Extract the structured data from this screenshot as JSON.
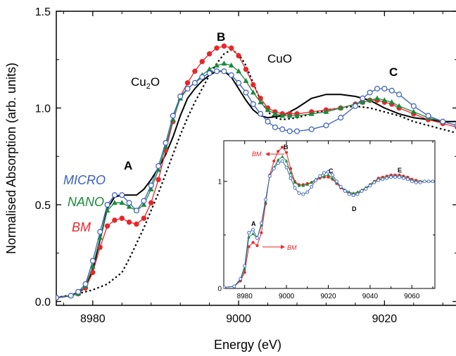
{
  "chart_data": [
    {
      "type": "line",
      "xlabel": "Energy (eV)",
      "ylabel": "Normalised Absorption (arb. units)",
      "xlim": [
        8975,
        9030
      ],
      "ylim": [
        -0.02,
        1.5
      ],
      "x_ticks": [
        8980,
        9000,
        9020
      ],
      "y_ticks": [
        0.0,
        0.5,
        1.0,
        1.5
      ],
      "x_tick_labels": [
        "8980",
        "9000",
        "9020"
      ],
      "y_tick_labels": [
        "0.0",
        "0.5",
        "1.0",
        "1.5"
      ],
      "grid": false,
      "legend_labels": [
        {
          "name": "MICRO",
          "color": "#3a5fbf"
        },
        {
          "name": "NANO",
          "color": "#1a8a3a"
        },
        {
          "name": "BM",
          "color": "#e8262a"
        }
      ],
      "annotations": {
        "A": "A",
        "B": "B",
        "C": "C",
        "cu2o_base": "Cu",
        "cu2o_sub": "2",
        "cu2o_end": "O",
        "cuo": "CuO"
      },
      "series": [
        {
          "name": "MICRO",
          "color": "#3a5fbf",
          "marker": "open-circle",
          "x": [
            8975,
            8977,
            8978,
            8979,
            8980,
            8981,
            8982,
            8983,
            8984,
            8985,
            8986,
            8987,
            8988,
            8989,
            8990,
            8991,
            8992,
            8993,
            8994,
            8995,
            8996,
            8997,
            8998,
            8999,
            9000,
            9001,
            9002,
            9003,
            9004,
            9005,
            9006,
            9007,
            9008,
            9010,
            9012,
            9014,
            9016,
            9017,
            9018,
            9019,
            9020,
            9021,
            9022,
            9024,
            9026,
            9028,
            9030
          ],
          "y": [
            0.02,
            0.03,
            0.05,
            0.09,
            0.21,
            0.36,
            0.5,
            0.55,
            0.55,
            0.51,
            0.47,
            0.52,
            0.6,
            0.7,
            0.82,
            0.96,
            1.06,
            1.1,
            1.13,
            1.16,
            1.18,
            1.19,
            1.19,
            1.17,
            1.13,
            1.08,
            1.02,
            0.97,
            0.93,
            0.9,
            0.89,
            0.88,
            0.88,
            0.89,
            0.91,
            0.95,
            1.01,
            1.05,
            1.08,
            1.1,
            1.1,
            1.09,
            1.07,
            1.01,
            0.96,
            0.93,
            0.91
          ]
        },
        {
          "name": "NANO",
          "color": "#1a8a3a",
          "marker": "filled-triangle",
          "x": [
            8975,
            8977,
            8978,
            8979,
            8980,
            8981,
            8982,
            8983,
            8984,
            8985,
            8986,
            8987,
            8988,
            8989,
            8990,
            8991,
            8992,
            8993,
            8994,
            8995,
            8996,
            8997,
            8998,
            8999,
            9000,
            9001,
            9002,
            9003,
            9004,
            9005,
            9006,
            9007,
            9008,
            9010,
            9012,
            9014,
            9016,
            9017,
            9018,
            9019,
            9020,
            9021,
            9022,
            9024,
            9026,
            9028,
            9030
          ],
          "y": [
            0.02,
            0.03,
            0.04,
            0.08,
            0.18,
            0.33,
            0.47,
            0.51,
            0.51,
            0.49,
            0.47,
            0.5,
            0.58,
            0.68,
            0.8,
            0.94,
            1.05,
            1.1,
            1.13,
            1.17,
            1.2,
            1.22,
            1.23,
            1.22,
            1.19,
            1.14,
            1.08,
            1.03,
            0.99,
            0.97,
            0.96,
            0.96,
            0.96,
            0.97,
            0.98,
            1.0,
            1.02,
            1.03,
            1.04,
            1.05,
            1.04,
            1.03,
            1.01,
            0.98,
            0.95,
            0.93,
            0.91
          ]
        },
        {
          "name": "BM",
          "color": "#e8262a",
          "marker": "filled-circle",
          "x": [
            8975,
            8977,
            8978,
            8979,
            8980,
            8981,
            8982,
            8983,
            8984,
            8985,
            8986,
            8987,
            8988,
            8989,
            8990,
            8991,
            8992,
            8993,
            8994,
            8995,
            8996,
            8997,
            8998,
            8999,
            9000,
            9001,
            9002,
            9003,
            9004,
            9005,
            9006,
            9007,
            9008,
            9010,
            9012,
            9014,
            9016,
            9017,
            9018,
            9019,
            9020,
            9021,
            9022,
            9024,
            9026,
            9028,
            9030
          ],
          "y": [
            0.02,
            0.03,
            0.04,
            0.07,
            0.15,
            0.28,
            0.39,
            0.42,
            0.43,
            0.41,
            0.4,
            0.43,
            0.51,
            0.63,
            0.78,
            0.93,
            1.06,
            1.13,
            1.19,
            1.24,
            1.28,
            1.31,
            1.32,
            1.31,
            1.27,
            1.2,
            1.12,
            1.05,
            1.0,
            0.98,
            0.97,
            0.97,
            0.97,
            0.98,
            0.99,
            1.0,
            1.02,
            1.03,
            1.04,
            1.04,
            1.03,
            1.02,
            1.0,
            0.97,
            0.94,
            0.92,
            0.9
          ]
        },
        {
          "name": "Cu2O",
          "color": "#000000",
          "style": "solid",
          "x": [
            8975,
            8977,
            8979,
            8980,
            8981,
            8982,
            8983,
            8984,
            8985,
            8986,
            8987,
            8988,
            8989,
            8990,
            8991,
            8992,
            8993,
            8994,
            8995,
            8996,
            8997,
            8998,
            8999,
            9000,
            9001,
            9002,
            9003,
            9004,
            9006,
            9008,
            9010,
            9012,
            9014,
            9016,
            9018,
            9020,
            9022,
            9024,
            9026,
            9028,
            9030
          ],
          "y": [
            0.02,
            0.03,
            0.07,
            0.16,
            0.32,
            0.48,
            0.54,
            0.55,
            0.55,
            0.55,
            0.58,
            0.63,
            0.69,
            0.76,
            0.85,
            0.96,
            1.05,
            1.1,
            1.14,
            1.17,
            1.19,
            1.19,
            1.16,
            1.1,
            1.04,
            0.99,
            0.96,
            0.95,
            0.96,
            1.0,
            1.05,
            1.07,
            1.07,
            1.06,
            1.04,
            1.0,
            0.97,
            0.95,
            0.94,
            0.93,
            0.93
          ]
        },
        {
          "name": "CuO",
          "color": "#000000",
          "style": "dotted",
          "x": [
            8975,
            8978,
            8980,
            8982,
            8984,
            8985,
            8986,
            8987,
            8988,
            8989,
            8990,
            8991,
            8992,
            8993,
            8994,
            8995,
            8996,
            8997,
            8998,
            8999,
            9000,
            9001,
            9002,
            9003,
            9004,
            9005,
            9006,
            9008,
            9010,
            9012,
            9014,
            9016,
            9018,
            9020,
            9022,
            9024,
            9026,
            9028,
            9030
          ],
          "y": [
            0.02,
            0.04,
            0.06,
            0.09,
            0.15,
            0.22,
            0.3,
            0.38,
            0.47,
            0.56,
            0.66,
            0.76,
            0.86,
            0.95,
            1.03,
            1.1,
            1.17,
            1.23,
            1.28,
            1.3,
            1.28,
            1.22,
            1.13,
            1.04,
            0.98,
            0.95,
            0.94,
            0.95,
            0.97,
            0.99,
            1.0,
            1.01,
            1.0,
            0.98,
            0.96,
            0.93,
            0.91,
            0.89,
            0.87
          ]
        }
      ]
    },
    {
      "type": "line",
      "inset": true,
      "xlim": [
        8970,
        9071
      ],
      "ylim": [
        0,
        1.38
      ],
      "x_ticks": [
        8980,
        9000,
        9020,
        9040,
        9060
      ],
      "y_ticks": [
        0,
        1
      ],
      "x_tick_labels": [
        "8980",
        "9000",
        "9020",
        "9040",
        "9060"
      ],
      "y_tick_labels": [
        "0",
        "1"
      ],
      "annotations": {
        "A": "A",
        "B": "B",
        "C": "C",
        "D": "D",
        "E": "E",
        "bm_top": "BM",
        "bm_bottom": "BM"
      },
      "series": [
        {
          "name": "MICRO",
          "color": "#3a5fbf",
          "x": [
            8970,
            8975,
            8978,
            8980,
            8982,
            8984,
            8986,
            8988,
            8990,
            8992,
            8994,
            8996,
            8998,
            9000,
            9002,
            9004,
            9006,
            9008,
            9010,
            9012,
            9014,
            9016,
            9018,
            9020,
            9022,
            9024,
            9026,
            9028,
            9030,
            9032,
            9034,
            9036,
            9038,
            9040,
            9042,
            9044,
            9046,
            9048,
            9050,
            9052,
            9054,
            9056,
            9058,
            9060,
            9062,
            9064,
            9066,
            9068,
            9070
          ],
          "y": [
            0.01,
            0.02,
            0.09,
            0.21,
            0.52,
            0.55,
            0.47,
            0.61,
            0.83,
            1.05,
            1.12,
            1.17,
            1.19,
            1.13,
            1.03,
            0.94,
            0.89,
            0.88,
            0.9,
            0.95,
            1.01,
            1.05,
            1.08,
            1.09,
            1.06,
            1.0,
            0.95,
            0.91,
            0.88,
            0.87,
            0.88,
            0.91,
            0.93,
            0.96,
            0.99,
            1.01,
            1.02,
            1.03,
            1.04,
            1.04,
            1.04,
            1.03,
            1.02,
            1.0,
            0.99,
            0.99,
            1.0,
            1.0,
            1.0
          ]
        },
        {
          "name": "NANO",
          "color": "#1a8a3a",
          "x": [
            8970,
            8975,
            8978,
            8980,
            8982,
            8984,
            8986,
            8988,
            8990,
            8992,
            8994,
            8996,
            8998,
            9000,
            9002,
            9004,
            9006,
            9008,
            9010,
            9012,
            9014,
            9016,
            9018,
            9020,
            9022,
            9024,
            9026,
            9028,
            9030,
            9032,
            9034,
            9036,
            9038,
            9040,
            9042,
            9044,
            9046,
            9048,
            9050,
            9052,
            9054,
            9056,
            9058,
            9060,
            9062,
            9064,
            9066,
            9068,
            9070
          ],
          "y": [
            0.01,
            0.02,
            0.08,
            0.18,
            0.48,
            0.51,
            0.47,
            0.59,
            0.81,
            1.05,
            1.13,
            1.2,
            1.23,
            1.19,
            1.08,
            0.99,
            0.96,
            0.96,
            0.97,
            0.99,
            1.02,
            1.04,
            1.05,
            1.06,
            1.03,
            0.99,
            0.95,
            0.92,
            0.9,
            0.89,
            0.9,
            0.92,
            0.94,
            0.97,
            1.0,
            1.02,
            1.03,
            1.04,
            1.05,
            1.05,
            1.05,
            1.04,
            1.03,
            1.01,
            1.0,
            1.0,
            1.0,
            1.0,
            1.0
          ]
        },
        {
          "name": "BM",
          "color": "#e8262a",
          "x": [
            8970,
            8975,
            8978,
            8980,
            8982,
            8984,
            8986,
            8988,
            8990,
            8992,
            8994,
            8996,
            8998,
            9000,
            9002,
            9004,
            9006,
            9008,
            9010,
            9012,
            9014,
            9016,
            9018,
            9020,
            9022,
            9024,
            9026,
            9028,
            9030,
            9032,
            9034,
            9036,
            9038,
            9040,
            9042,
            9044,
            9046,
            9048,
            9050,
            9052,
            9054,
            9056,
            9058,
            9060,
            9062,
            9064,
            9066,
            9068,
            9070
          ],
          "y": [
            0.01,
            0.02,
            0.07,
            0.15,
            0.39,
            0.43,
            0.4,
            0.52,
            0.79,
            1.06,
            1.19,
            1.28,
            1.32,
            1.27,
            1.12,
            1.0,
            0.97,
            0.97,
            0.98,
            0.99,
            1.01,
            1.03,
            1.04,
            1.04,
            1.02,
            0.98,
            0.94,
            0.91,
            0.89,
            0.88,
            0.89,
            0.91,
            0.94,
            0.97,
            1.0,
            1.03,
            1.04,
            1.05,
            1.06,
            1.06,
            1.06,
            1.05,
            1.04,
            1.02,
            1.01,
            1.0,
            1.0,
            1.0,
            1.0
          ]
        }
      ]
    }
  ]
}
